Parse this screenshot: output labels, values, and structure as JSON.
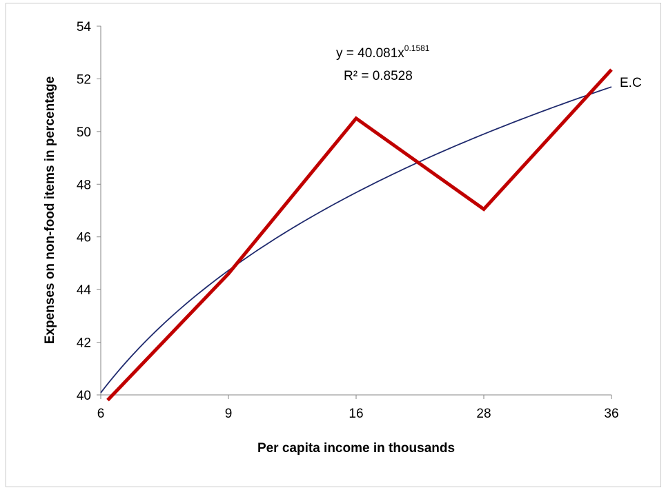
{
  "chart_data": {
    "type": "line",
    "x_axis": {
      "label": "Per capita income in thousands",
      "categories": [
        "6",
        "9",
        "16",
        "28",
        "36"
      ]
    },
    "y_axis": {
      "label": "Expenses on non-food items in percentage",
      "min": 40,
      "max": 54,
      "step": 2,
      "ticks": [
        "40",
        "42",
        "44",
        "46",
        "48",
        "50",
        "52",
        "54"
      ]
    },
    "series": [
      {
        "name": "E.C",
        "color": "#c00000",
        "values": [
          39.8,
          44.6,
          50.5,
          47.05,
          52.35
        ]
      }
    ],
    "trendline": {
      "type": "power",
      "coefficient": 40.081,
      "exponent": 0.1581,
      "color": "#1f2a6e",
      "equation_prefix": "y = 40.081x",
      "equation_exponent": "0.1581",
      "r_squared": "R² = 0.8528"
    },
    "grid": false,
    "legend": "none"
  }
}
